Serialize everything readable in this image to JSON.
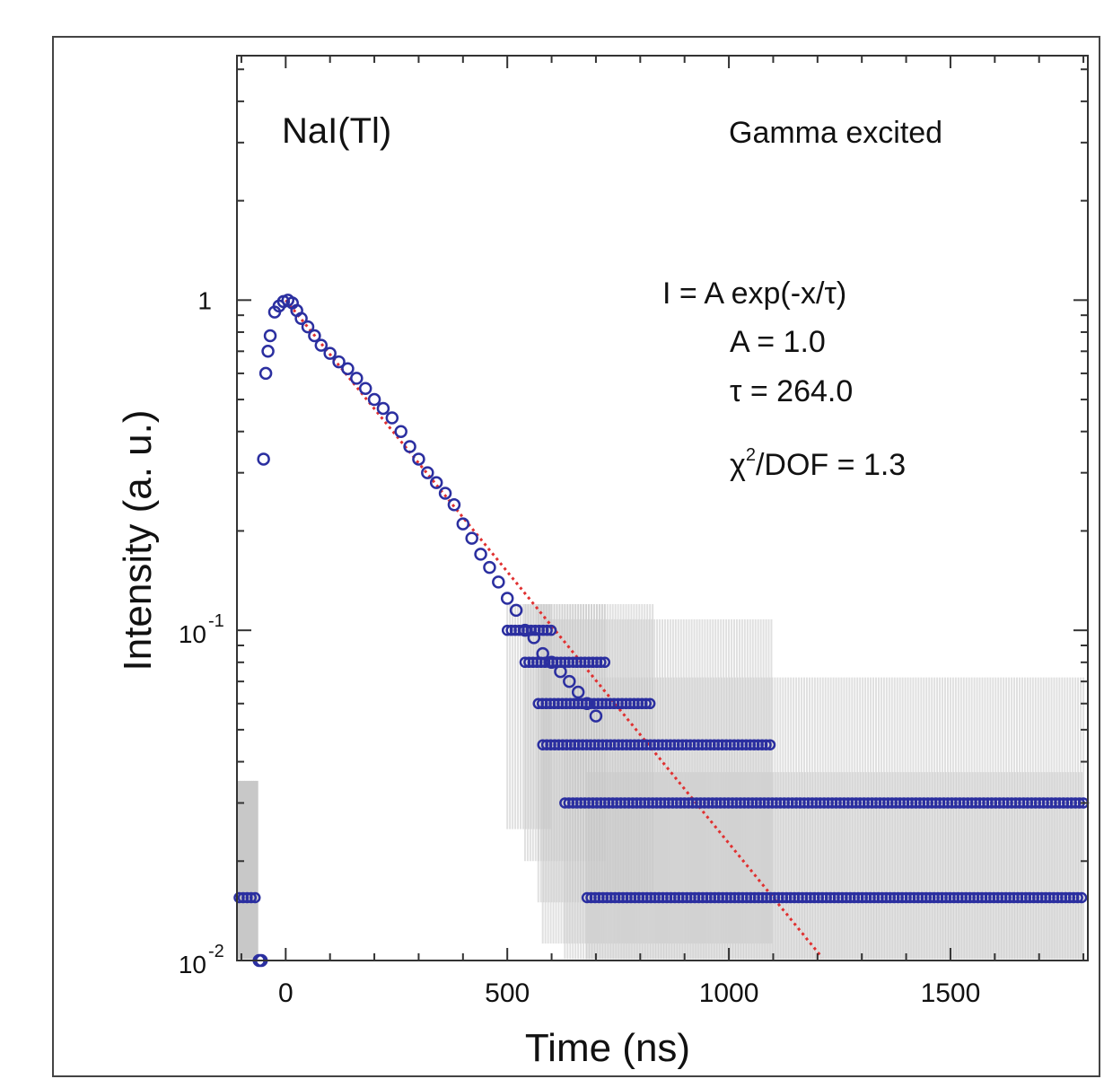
{
  "chart_data": {
    "type": "scatter",
    "xlabel": "Time (ns)",
    "ylabel": "Intensity (a. u.)",
    "xlim": [
      -110,
      1810
    ],
    "ylim": [
      0.01,
      5.5
    ],
    "y_scale": "log",
    "x_ticks": [
      0,
      500,
      1000,
      1500
    ],
    "x_tick_labels": [
      "0",
      "500",
      "1000",
      "1500"
    ],
    "y_ticks": [
      {
        "value": 0.01,
        "base": "10",
        "exp": "-2"
      },
      {
        "value": 0.1,
        "base": "10",
        "exp": "-1"
      },
      {
        "value": 1,
        "base": "1",
        "exp": ""
      }
    ],
    "annotations": {
      "material": "NaI(Tl)",
      "excitation": "Gamma excited",
      "formula": "I = A exp(-x/τ)",
      "amplitude": "A = 1.0",
      "tau": "τ = 264.0",
      "chi_prefix": "χ",
      "chi_sup": "2",
      "chi_suffix": "/DOF = 1.3"
    },
    "fit": {
      "A": 1.0,
      "tau": 264.0,
      "x_start": 0,
      "x_end": 1215
    },
    "colors": {
      "data": "#2b2fa0",
      "fit": "#e03030",
      "error_band": "#c8c8c8"
    },
    "series": [
      {
        "x": [
          -60,
          -55,
          -50,
          -45,
          -40,
          -35,
          -25,
          -15,
          -5,
          5,
          15,
          25,
          35,
          50,
          65,
          80,
          100,
          120,
          140,
          160,
          180,
          200,
          220,
          240,
          260,
          280,
          300,
          320,
          340,
          360,
          380,
          400,
          420,
          440,
          460,
          480,
          500,
          520,
          540,
          560,
          580,
          600,
          620,
          640,
          660,
          680,
          700
        ],
        "y": [
          0.01,
          0.01,
          0.33,
          0.6,
          0.7,
          0.78,
          0.92,
          0.96,
          0.99,
          1.0,
          0.98,
          0.93,
          0.88,
          0.83,
          0.78,
          0.73,
          0.69,
          0.65,
          0.62,
          0.58,
          0.54,
          0.5,
          0.47,
          0.44,
          0.4,
          0.36,
          0.33,
          0.3,
          0.28,
          0.26,
          0.24,
          0.21,
          0.19,
          0.17,
          0.155,
          0.14,
          0.125,
          0.115,
          0.1,
          0.095,
          0.085,
          0.08,
          0.075,
          0.07,
          0.065,
          0.06,
          0.055
        ]
      },
      {
        "levels": [
          0.1,
          0.08,
          0.06,
          0.045,
          0.03,
          0.0155
        ],
        "ranges": [
          [
            500,
            600
          ],
          [
            540,
            720
          ],
          [
            570,
            830
          ],
          [
            580,
            1100
          ],
          [
            630,
            1800
          ],
          [
            680,
            1800
          ]
        ]
      }
    ]
  }
}
